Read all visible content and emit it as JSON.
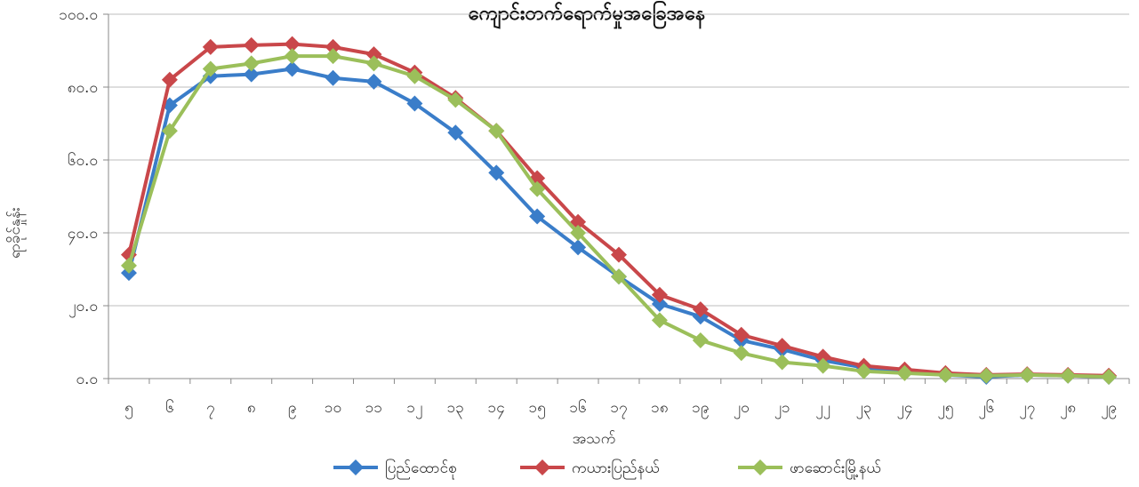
{
  "chart_data": {
    "type": "line",
    "title": "ကျောင်းတက်ရောက်မှုအခြေအနေ",
    "xlabel": "အသက်",
    "ylabel": "ရာခိုင်နှုန်း",
    "x": [
      "၅",
      "၆",
      "၇",
      "၈",
      "၉",
      "၁၀",
      "၁၁",
      "၁၂",
      "၁၃",
      "၁၄",
      "၁၅",
      "၁၆",
      "၁၇",
      "၁၈",
      "၁၉",
      "၂၀",
      "၂၁",
      "၂၂",
      "၂၃",
      "၂၄",
      "၂၅",
      "၂၆",
      "၂၇",
      "၂၈",
      "၂၉"
    ],
    "ylim": [
      0,
      100
    ],
    "yticks": [
      0,
      20,
      40,
      60,
      80,
      100
    ],
    "ytick_labels": [
      "၀.၀",
      "၂၀.၀",
      "၄၀.၀",
      "၆၀.၀",
      "၈၀.၀",
      "၁၀၀.၀"
    ],
    "grid": true,
    "legend_position": "bottom",
    "series": [
      {
        "name": "ပြည်ထောင်စု",
        "color": "#3a7dc9",
        "values": [
          29.0,
          75.0,
          83.0,
          83.5,
          85.0,
          82.5,
          81.5,
          75.5,
          67.5,
          56.5,
          44.5,
          36.0,
          28.0,
          20.5,
          17.0,
          10.5,
          8.0,
          5.0,
          3.0,
          2.0,
          1.0,
          0.5,
          1.0,
          0.8,
          0.5
        ]
      },
      {
        "name": "ကယားပြည်နယ်",
        "color": "#c9474a",
        "values": [
          34.0,
          82.0,
          91.0,
          91.5,
          91.8,
          91.0,
          89.0,
          84.0,
          77.0,
          68.0,
          55.0,
          43.0,
          34.0,
          23.0,
          19.0,
          12.0,
          9.0,
          6.0,
          3.5,
          2.5,
          1.5,
          1.0,
          1.2,
          1.0,
          0.8
        ]
      },
      {
        "name": "ဖာဆောင်းမြို့နယ်",
        "color": "#9bbf5a",
        "values": [
          31.0,
          68.0,
          85.0,
          86.5,
          88.5,
          88.5,
          86.5,
          83.0,
          76.5,
          68.0,
          52.0,
          40.0,
          28.0,
          16.0,
          10.5,
          7.0,
          4.5,
          3.5,
          2.0,
          1.5,
          1.0,
          0.8,
          1.0,
          0.8,
          0.5
        ]
      }
    ]
  }
}
